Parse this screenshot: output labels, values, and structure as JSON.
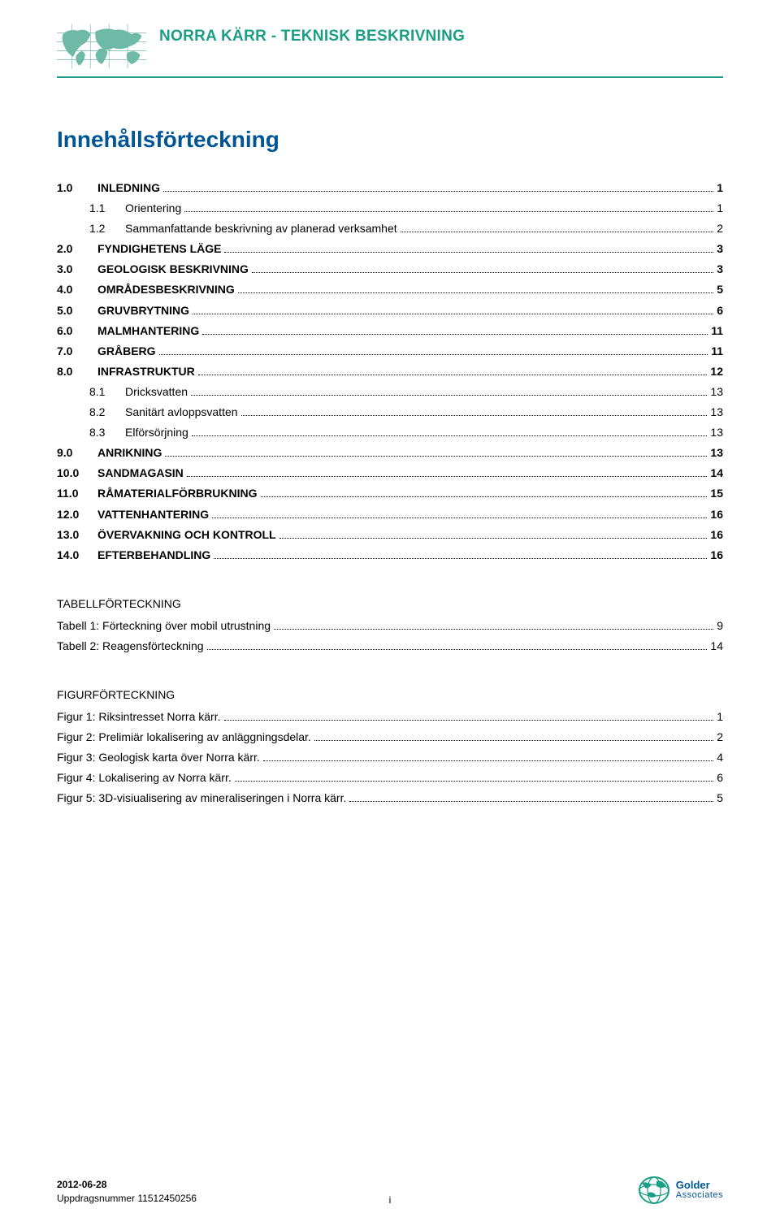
{
  "header": {
    "title": "NORRA KÄRR - TEKNISK BESKRIVNING",
    "accent_color": "#1b9e86"
  },
  "toc_title": "Innehållsförteckning",
  "toc_title_color": "#005695",
  "toc": [
    {
      "num": "1.0",
      "label": "INLEDNING",
      "page": "1",
      "bold": true,
      "indent": false
    },
    {
      "num": "1.1",
      "label": "Orientering",
      "page": "1",
      "bold": false,
      "indent": true
    },
    {
      "num": "1.2",
      "label": "Sammanfattande beskrivning av planerad verksamhet",
      "page": "2",
      "bold": false,
      "indent": true
    },
    {
      "num": "2.0",
      "label": "FYNDIGHETENS LÄGE",
      "page": "3",
      "bold": true,
      "indent": false
    },
    {
      "num": "3.0",
      "label": "GEOLOGISK BESKRIVNING",
      "page": "3",
      "bold": true,
      "indent": false
    },
    {
      "num": "4.0",
      "label": "OMRÅDESBESKRIVNING",
      "page": "5",
      "bold": true,
      "indent": false
    },
    {
      "num": "5.0",
      "label": "GRUVBRYTNING",
      "page": "6",
      "bold": true,
      "indent": false
    },
    {
      "num": "6.0",
      "label": "MALMHANTERING",
      "page": "11",
      "bold": true,
      "indent": false
    },
    {
      "num": "7.0",
      "label": "GRÅBERG",
      "page": "11",
      "bold": true,
      "indent": false
    },
    {
      "num": "8.0",
      "label": "INFRASTRUKTUR",
      "page": "12",
      "bold": true,
      "indent": false
    },
    {
      "num": "8.1",
      "label": "Dricksvatten",
      "page": "13",
      "bold": false,
      "indent": true
    },
    {
      "num": "8.2",
      "label": "Sanitärt avloppsvatten",
      "page": "13",
      "bold": false,
      "indent": true
    },
    {
      "num": "8.3",
      "label": "Elförsörjning",
      "page": "13",
      "bold": false,
      "indent": true
    },
    {
      "num": "9.0",
      "label": "ANRIKNING",
      "page": "13",
      "bold": true,
      "indent": false
    },
    {
      "num": "10.0",
      "label": "SANDMAGASIN",
      "page": "14",
      "bold": true,
      "indent": false
    },
    {
      "num": "11.0",
      "label": "RÅMATERIALFÖRBRUKNING",
      "page": "15",
      "bold": true,
      "indent": false
    },
    {
      "num": "12.0",
      "label": "VATTENHANTERING",
      "page": "16",
      "bold": true,
      "indent": false
    },
    {
      "num": "13.0",
      "label": "ÖVERVAKNING OCH KONTROLL",
      "page": "16",
      "bold": true,
      "indent": false
    },
    {
      "num": "14.0",
      "label": "EFTERBEHANDLING",
      "page": "16",
      "bold": true,
      "indent": false
    }
  ],
  "tables_heading": "TABELLFÖRTECKNING",
  "tables": [
    {
      "label": "Tabell 1: Förteckning över mobil utrustning",
      "page": "9"
    },
    {
      "label": "Tabell 2: Reagensförteckning",
      "page": "14"
    }
  ],
  "figures_heading": "FIGURFÖRTECKNING",
  "figures": [
    {
      "label": "Figur 1: Riksintresset Norra kärr.",
      "page": "1"
    },
    {
      "label": "Figur 2: Prelimiär lokalisering av anläggningsdelar.",
      "page": "2"
    },
    {
      "label": "Figur 3: Geologisk karta över Norra kärr.",
      "page": "4"
    },
    {
      "label": "Figur 4: Lokalisering av Norra kärr.",
      "page": "6"
    },
    {
      "label": "Figur 5: 3D-visiualisering av mineraliseringen i Norra kärr.",
      "page": "5"
    }
  ],
  "footer": {
    "date": "2012-06-28",
    "project_label": "Uppdragsnummer",
    "project_no": "11512450256",
    "page_indicator": "i",
    "logo_line1": "Golder",
    "logo_line2": "Associates"
  },
  "colors": {
    "accent": "#1b9e86",
    "heading_blue": "#005695",
    "text": "#000000",
    "map_fill": "#6fb9a7"
  }
}
